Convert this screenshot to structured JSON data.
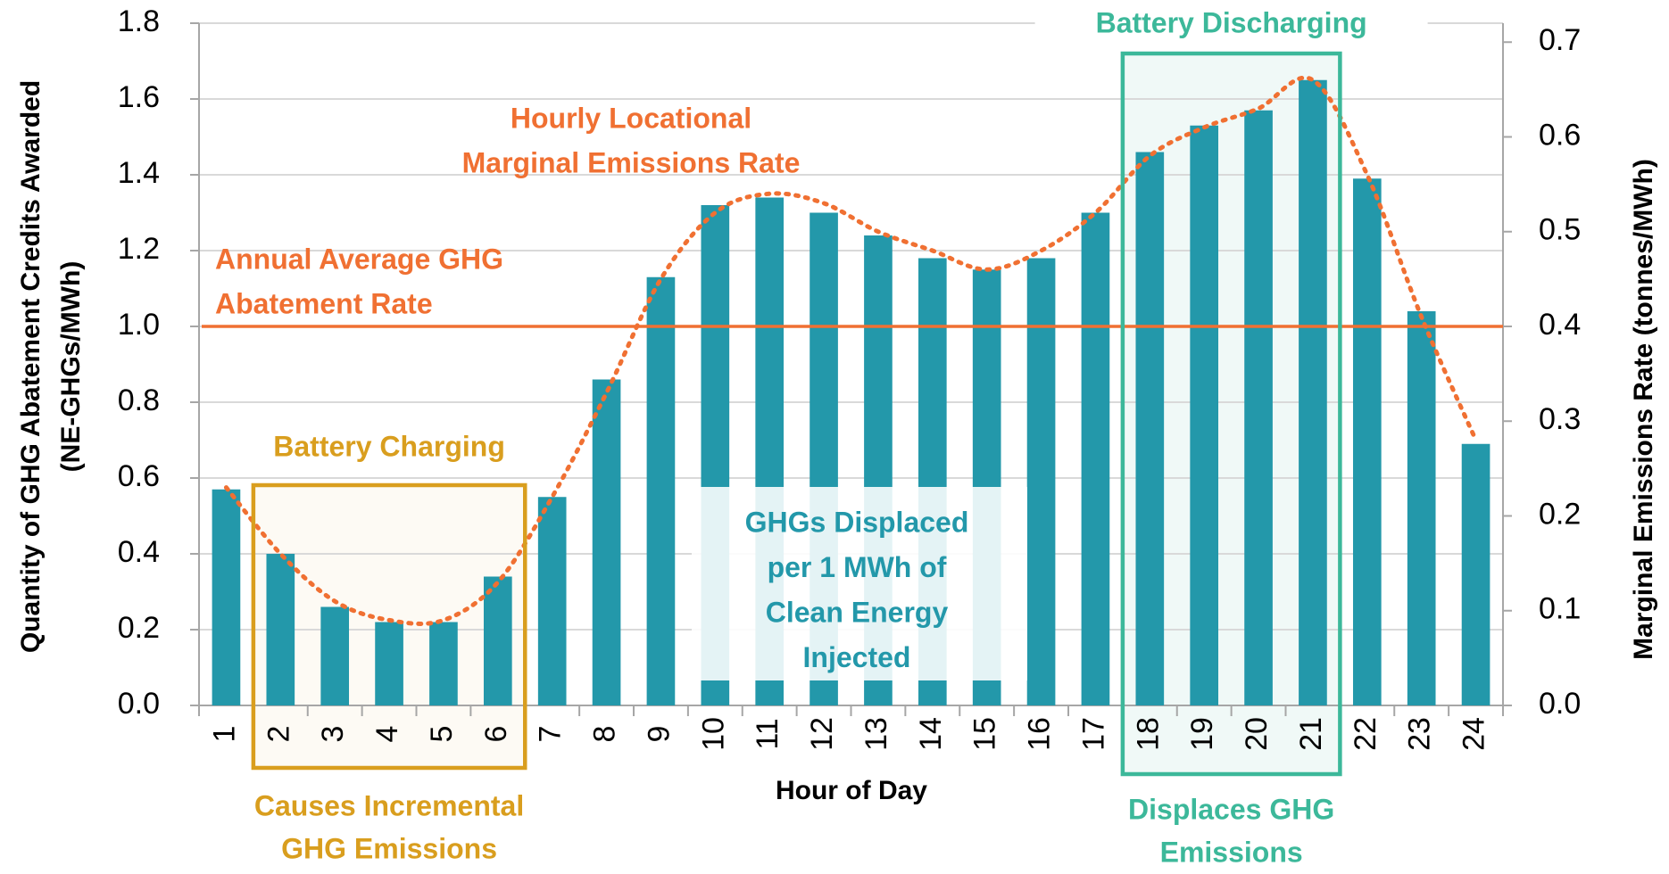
{
  "chart_data": {
    "type": "bar_line",
    "categories": [
      1,
      2,
      3,
      4,
      5,
      6,
      7,
      8,
      9,
      10,
      11,
      12,
      13,
      14,
      15,
      16,
      17,
      18,
      19,
      20,
      21,
      22,
      23,
      24
    ],
    "series": [
      {
        "name": "GHG Abatement Credits Awarded",
        "type": "bar",
        "color": "#2398aa",
        "values": [
          0.57,
          0.4,
          0.26,
          0.22,
          0.22,
          0.34,
          0.55,
          0.86,
          1.13,
          1.32,
          1.34,
          1.3,
          1.24,
          1.18,
          1.15,
          1.18,
          1.3,
          1.46,
          1.53,
          1.57,
          1.65,
          1.39,
          1.04,
          0.69
        ]
      },
      {
        "name": "Hourly Locational Marginal Emissions Rate",
        "type": "line",
        "axis": "y2",
        "color": "#f07032",
        "dotted": true,
        "values": [
          0.23,
          0.16,
          0.11,
          0.09,
          0.09,
          0.13,
          0.22,
          0.33,
          0.45,
          0.52,
          0.54,
          0.53,
          0.5,
          0.48,
          0.46,
          0.48,
          0.52,
          0.58,
          0.61,
          0.63,
          0.66,
          0.56,
          0.41,
          0.28
        ]
      }
    ],
    "reference_line": {
      "value": 1.0,
      "color": "#f07032",
      "label": [
        "Annual  Average GHG",
        "Abatement Rate"
      ]
    },
    "line_label": [
      "Hourly Locational",
      "Marginal Emissions Rate"
    ],
    "xlabel": "Hour of Day",
    "ylabel": [
      "Quantity of GHG Abatement Credits Awarded",
      "(NE-GHGs/MWh)"
    ],
    "y2label": "Marginal Emissions Rate (tonnes/MWh)",
    "ylim": [
      0,
      1.8
    ],
    "yticks": [
      {
        "value": 0,
        "label": "0.0"
      },
      0.2,
      0.4,
      0.6,
      0.8,
      {
        "value": 1.0,
        "label": "1.0"
      },
      1.2,
      1.4,
      1.6,
      1.8
    ],
    "y2lim": [
      0,
      0.72
    ],
    "y2ticks": [
      {
        "value": 0,
        "label": "0.0"
      },
      0.1,
      0.2,
      0.3,
      0.4,
      0.5,
      0.6,
      0.7
    ],
    "grid": true,
    "highlights": [
      {
        "label": "Battery Charging",
        "caption": [
          "Causes Incremental",
          "GHG Emissions"
        ],
        "span": [
          2,
          6
        ],
        "color": "#d99e1e"
      },
      {
        "label": "Battery Discharging",
        "caption": [
          "Displaces GHG",
          "Emissions"
        ],
        "span": [
          18,
          21
        ],
        "color": "#3cb89a"
      }
    ],
    "note": [
      "GHGs Displaced",
      "per 1 MWh of",
      "Clean Energy",
      "Injected"
    ],
    "note_color": "#2398aa"
  }
}
